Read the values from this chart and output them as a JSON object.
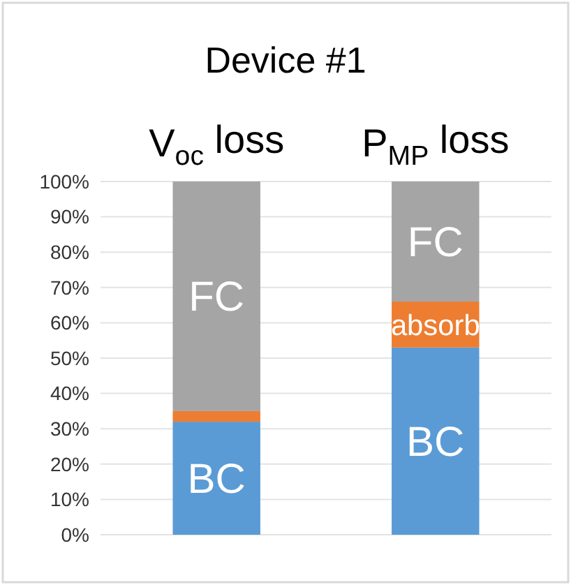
{
  "chart_data": {
    "type": "bar",
    "title": "Device #1",
    "categories": [
      "V$_{oc}$ loss",
      "P$_{MP}$ loss"
    ],
    "stacked": true,
    "ylim": [
      0,
      100
    ],
    "yticks": [
      {
        "value": 0,
        "label": "0%"
      },
      {
        "value": 10,
        "label": "10%"
      },
      {
        "value": 20,
        "label": "20%"
      },
      {
        "value": 30,
        "label": "30%"
      },
      {
        "value": 40,
        "label": "40%"
      },
      {
        "value": 50,
        "label": "50%"
      },
      {
        "value": 60,
        "label": "60%"
      },
      {
        "value": 70,
        "label": "70%"
      },
      {
        "value": 80,
        "label": "80%"
      },
      {
        "value": 90,
        "label": "90%"
      },
      {
        "value": 100,
        "label": "100%"
      }
    ],
    "grid": "y",
    "series": [
      {
        "name": "BC",
        "color": "#5b9bd5",
        "values": [
          32,
          53
        ]
      },
      {
        "name": "absorb",
        "color": "#ed7d31",
        "values": [
          3,
          13
        ]
      },
      {
        "name": "FC",
        "color": "#a5a5a5",
        "values": [
          65,
          34
        ]
      }
    ]
  }
}
